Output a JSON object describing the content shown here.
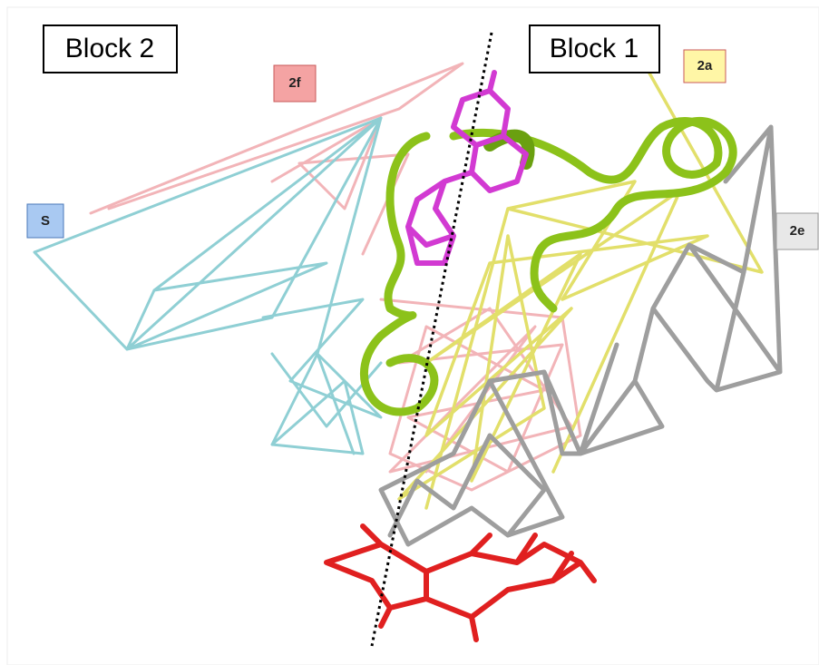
{
  "blocks": [
    "Block 2",
    "Block 1"
  ],
  "tags": [
    "2f",
    "2a",
    "S",
    "2e"
  ]
}
